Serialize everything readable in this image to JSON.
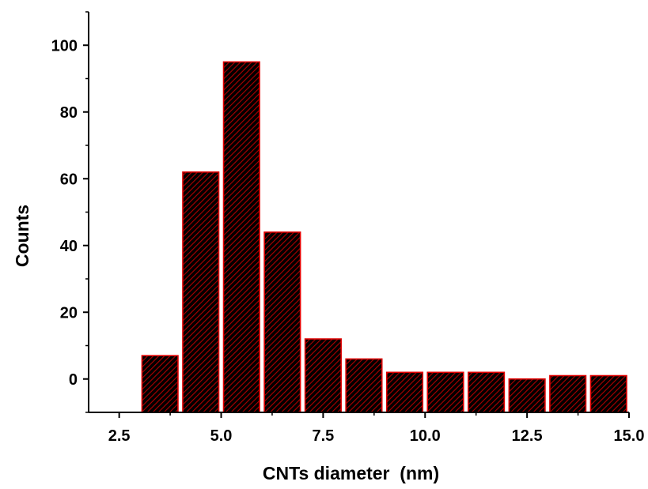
{
  "chart_data": {
    "type": "bar",
    "xlabel": "CNTs diameter  (nm)",
    "ylabel": "Counts",
    "xlim": [
      1.75,
      15.0
    ],
    "ylim": [
      -10,
      110
    ],
    "xticks": [
      2.5,
      5.0,
      7.5,
      10.0,
      12.5,
      15.0
    ],
    "xtick_labels": [
      "2.5",
      "5.0",
      "7.5",
      "10.0",
      "12.5",
      "15.0"
    ],
    "yticks": [
      0,
      20,
      40,
      60,
      80,
      100
    ],
    "ytick_labels": [
      "0",
      "20",
      "40",
      "60",
      "80",
      "100"
    ],
    "bin_width": 1.0,
    "bins": [
      {
        "start": 3.0,
        "end": 4.0,
        "value": 7
      },
      {
        "start": 4.0,
        "end": 5.0,
        "value": 62
      },
      {
        "start": 5.0,
        "end": 6.0,
        "value": 95
      },
      {
        "start": 6.0,
        "end": 7.0,
        "value": 44
      },
      {
        "start": 7.0,
        "end": 8.0,
        "value": 12
      },
      {
        "start": 8.0,
        "end": 9.0,
        "value": 6
      },
      {
        "start": 9.0,
        "end": 10.0,
        "value": 2
      },
      {
        "start": 10.0,
        "end": 11.0,
        "value": 2
      },
      {
        "start": 11.0,
        "end": 12.0,
        "value": 2
      },
      {
        "start": 12.0,
        "end": 13.0,
        "value": 0
      },
      {
        "start": 13.0,
        "end": 14.0,
        "value": 1
      },
      {
        "start": 14.0,
        "end": 15.0,
        "value": 1
      }
    ],
    "colors": {
      "bar_fill": "#000000",
      "hatch": "#b00000",
      "bar_edge": "#e00000",
      "axis": "#000000"
    },
    "hatch_pattern": "diagonal-lines",
    "grid": false,
    "legend": "none"
  }
}
